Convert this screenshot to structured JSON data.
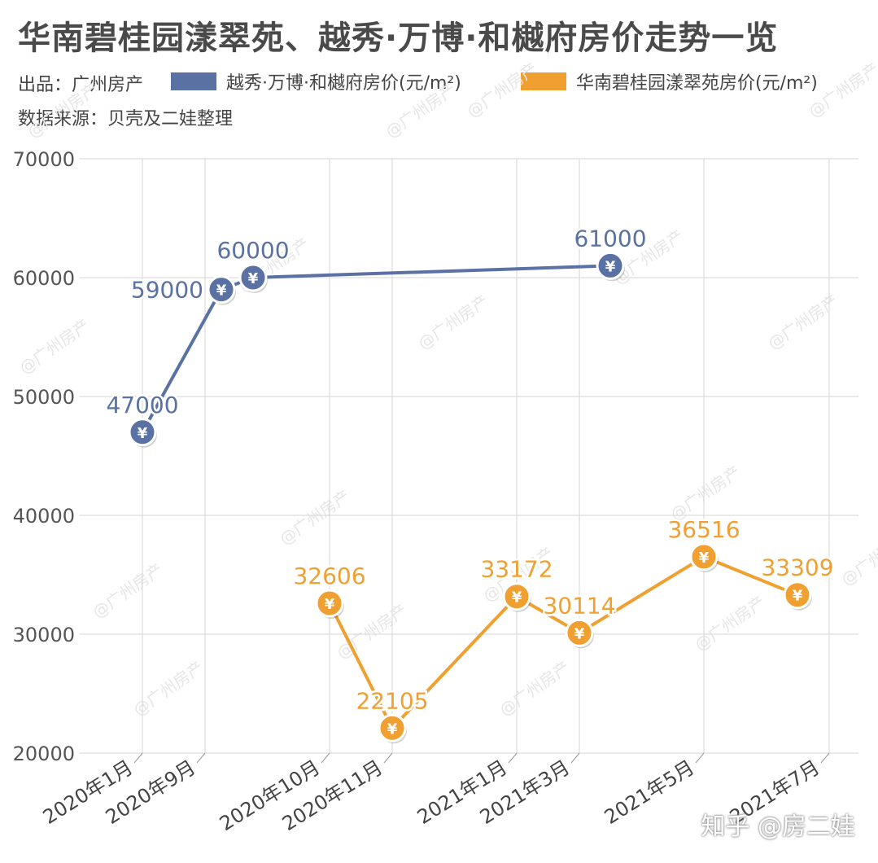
{
  "title": "华南碧桂园漾翠苑、越秀·万博·和樾府房价走势一览",
  "producer": "出品：广州房产",
  "source": "数据来源：贝壳及二娃整理",
  "watermark": "@广州房产",
  "bottom_watermark": "知乎 @房二娃",
  "colors": {
    "blue": "#5a72a3",
    "orange": "#f0a030",
    "grid": "#d6d6d6"
  },
  "chart_data": {
    "type": "line",
    "categories": [
      "2020年1月",
      "2020年9月",
      "2020年10月",
      "2020年11月",
      "2021年1月",
      "2021年3月",
      "2021年5月",
      "2021年7月"
    ],
    "ylim": [
      20000,
      70000
    ],
    "yticks": [
      "20000",
      "30000",
      "40000",
      "50000",
      "60000",
      "70000"
    ],
    "series": [
      {
        "name": "越秀·万博·和樾府房价(元/m²)",
        "color": "#5a72a3",
        "points": [
          {
            "x": "2020年1月",
            "y": 47000,
            "label": "47000"
          },
          {
            "x": "2020年9月",
            "y": 59000,
            "label": "59000"
          },
          {
            "x": "2020年9月",
            "y": 60000,
            "label": "60000"
          },
          {
            "x": "2021年3月",
            "y": 61000,
            "label": "61000"
          }
        ]
      },
      {
        "name": "华南碧桂园漾翠苑房价(元/m²)",
        "color": "#f0a030",
        "points": [
          {
            "x": "2020年10月",
            "y": 32606,
            "label": "32606"
          },
          {
            "x": "2020年11月",
            "y": 22105,
            "label": "22105"
          },
          {
            "x": "2021年1月",
            "y": 33172,
            "label": "33172"
          },
          {
            "x": "2021年3月",
            "y": 30114,
            "label": "30114"
          },
          {
            "x": "2021年5月",
            "y": 36516,
            "label": "36516"
          },
          {
            "x": "2021年7月",
            "y": 33309,
            "label": "33309"
          }
        ]
      }
    ],
    "marker_symbol": "¥",
    "grid": true,
    "legend_position": "top"
  }
}
